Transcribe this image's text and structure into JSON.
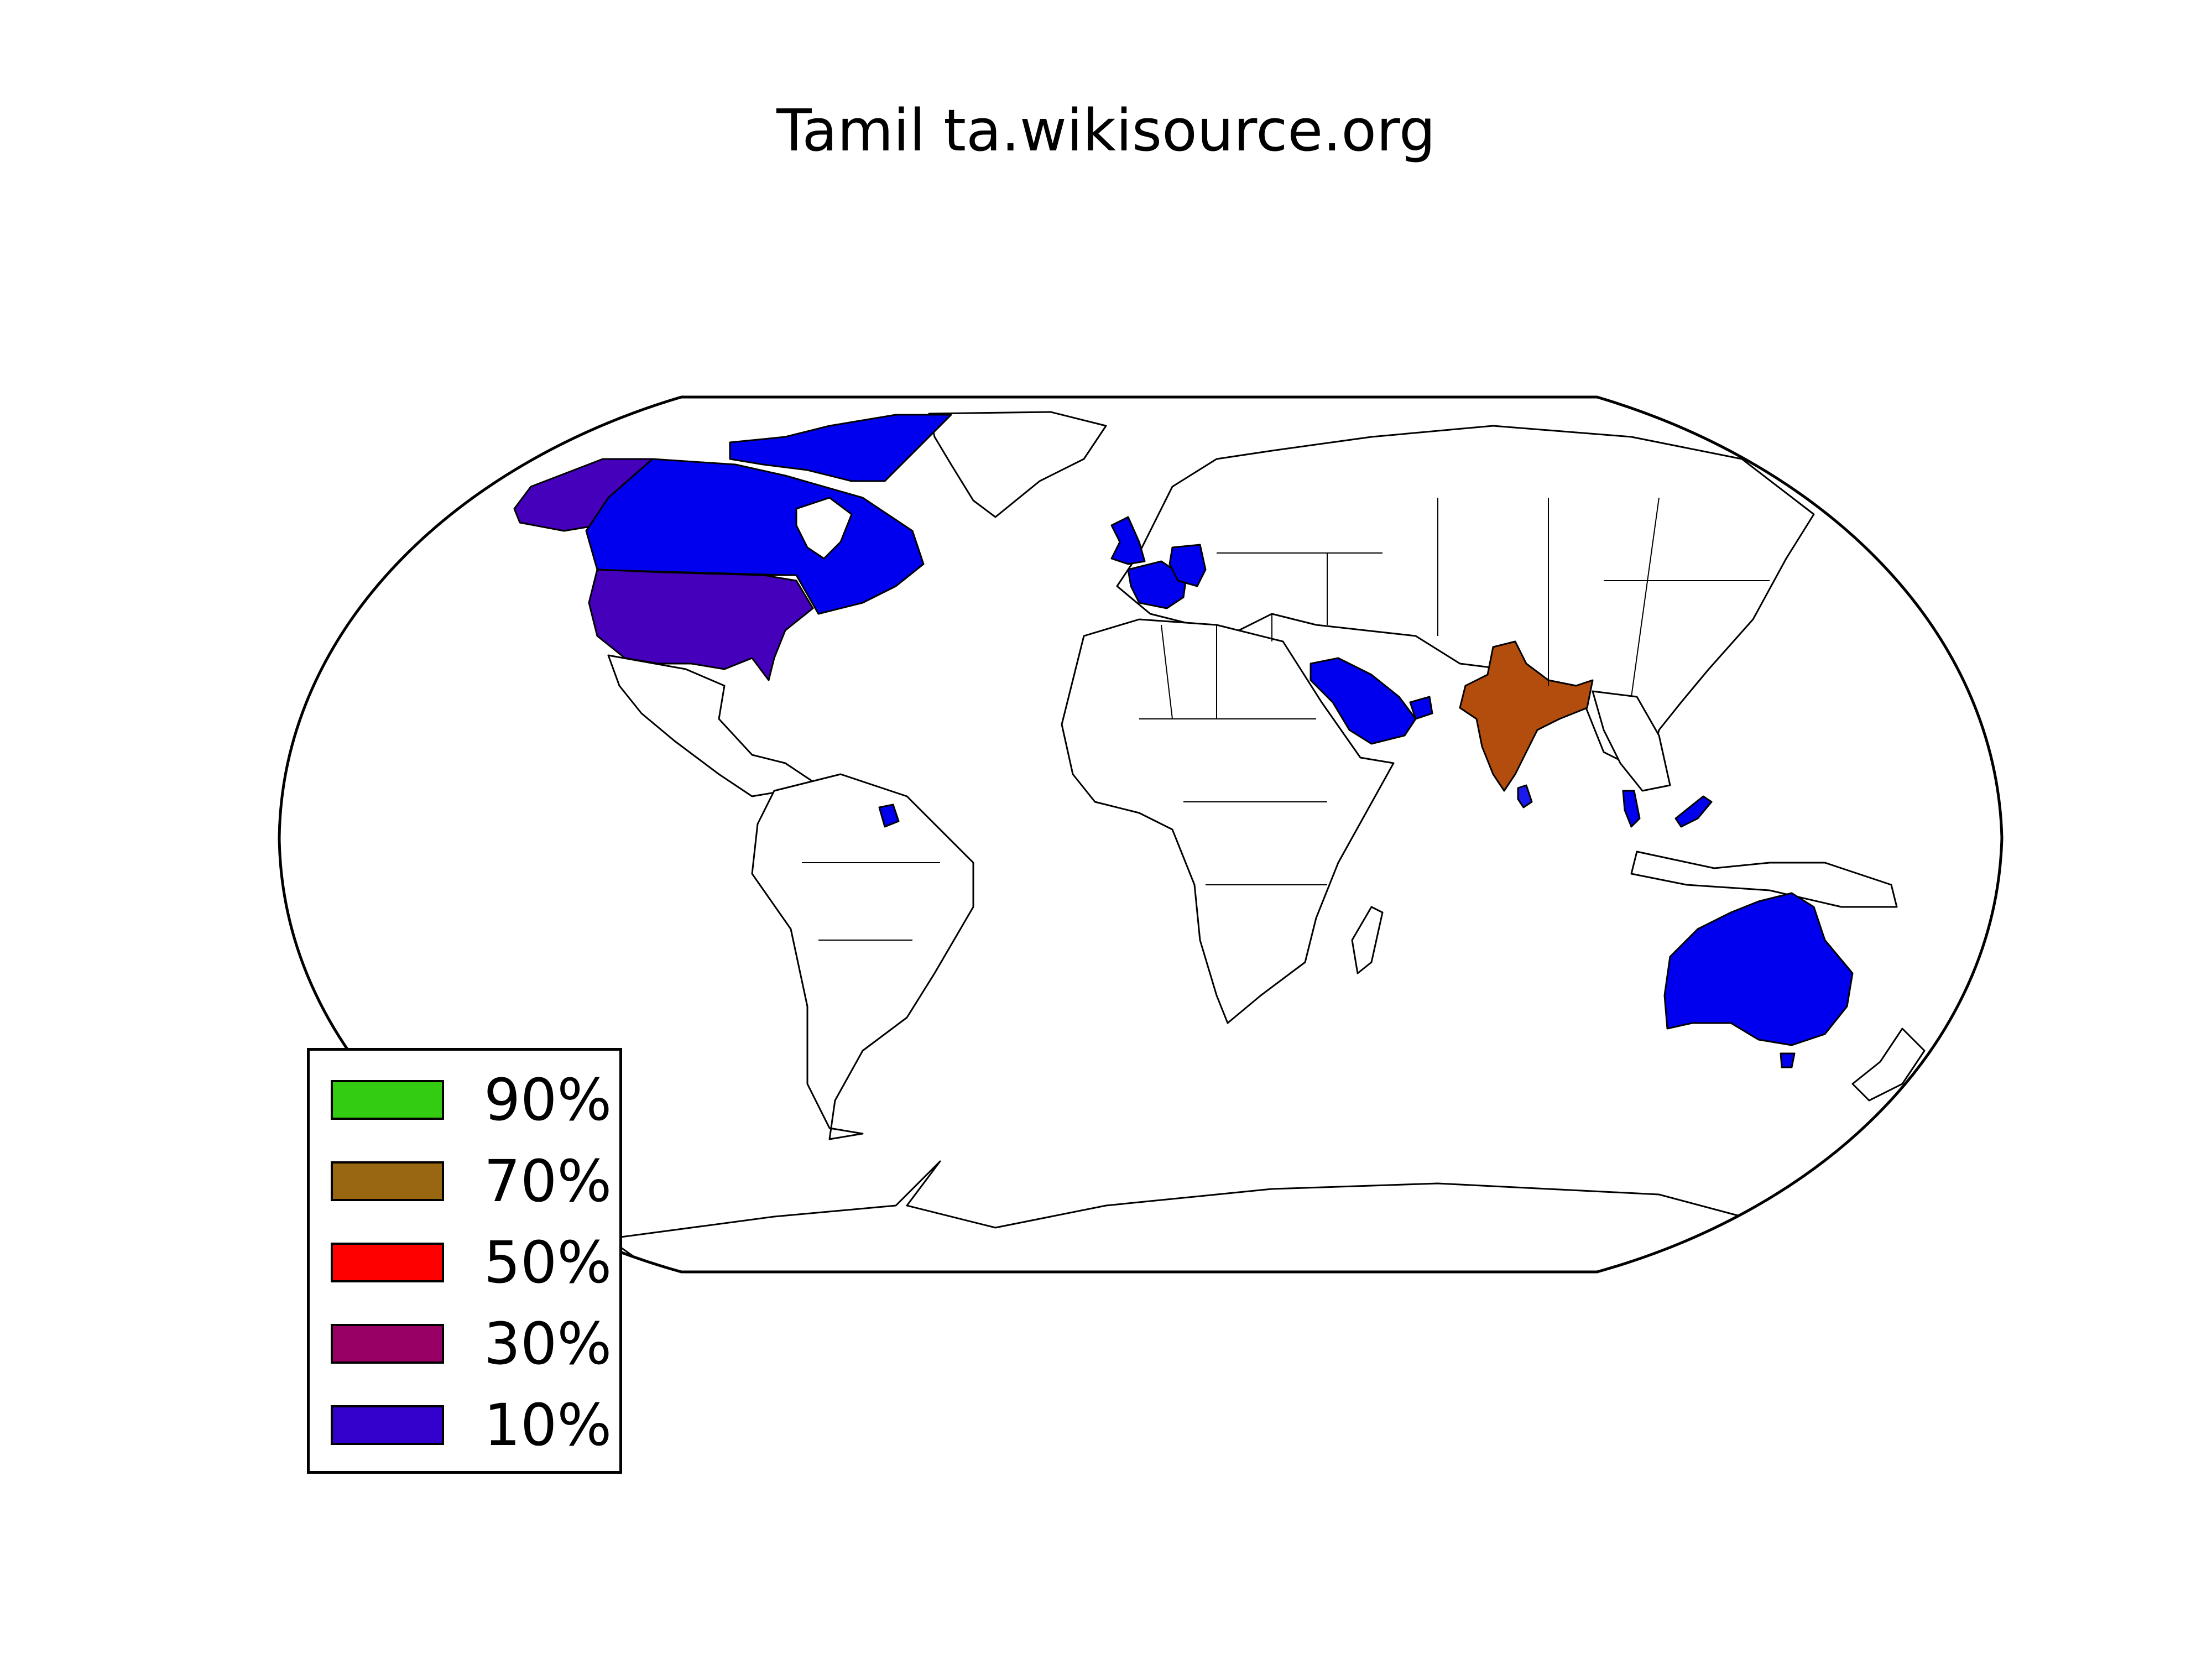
{
  "title": "Tamil ta.wikisource.org",
  "legend": [
    {
      "label": "90%",
      "color": "#33cc11"
    },
    {
      "label": "70%",
      "color": "#996611"
    },
    {
      "label": "50%",
      "color": "#ff0000"
    },
    {
      "label": "30%",
      "color": "#990066"
    },
    {
      "label": "10%",
      "color": "#3300cc"
    }
  ],
  "regions": [
    {
      "name": "india",
      "color": "#b34d0d"
    },
    {
      "name": "sri-lanka",
      "color": "#1a1aee"
    },
    {
      "name": "united-states",
      "color": "#4400bb"
    },
    {
      "name": "alaska",
      "color": "#4400bb"
    },
    {
      "name": "canada",
      "color": "#0000ee"
    },
    {
      "name": "canadian-arctic-islands",
      "color": "#0000ee"
    },
    {
      "name": "united-kingdom",
      "color": "#0000ee"
    },
    {
      "name": "france",
      "color": "#0000ee"
    },
    {
      "name": "germany",
      "color": "#0000ee"
    },
    {
      "name": "saudi-arabia",
      "color": "#0000ee"
    },
    {
      "name": "uae",
      "color": "#0000ee"
    },
    {
      "name": "malaysia-peninsular",
      "color": "#0000ee"
    },
    {
      "name": "malaysia-borneo",
      "color": "#0000ee"
    },
    {
      "name": "australia",
      "color": "#0000ee"
    },
    {
      "name": "tasmania",
      "color": "#0000ee"
    },
    {
      "name": "guyana",
      "color": "#0000ee"
    }
  ]
}
